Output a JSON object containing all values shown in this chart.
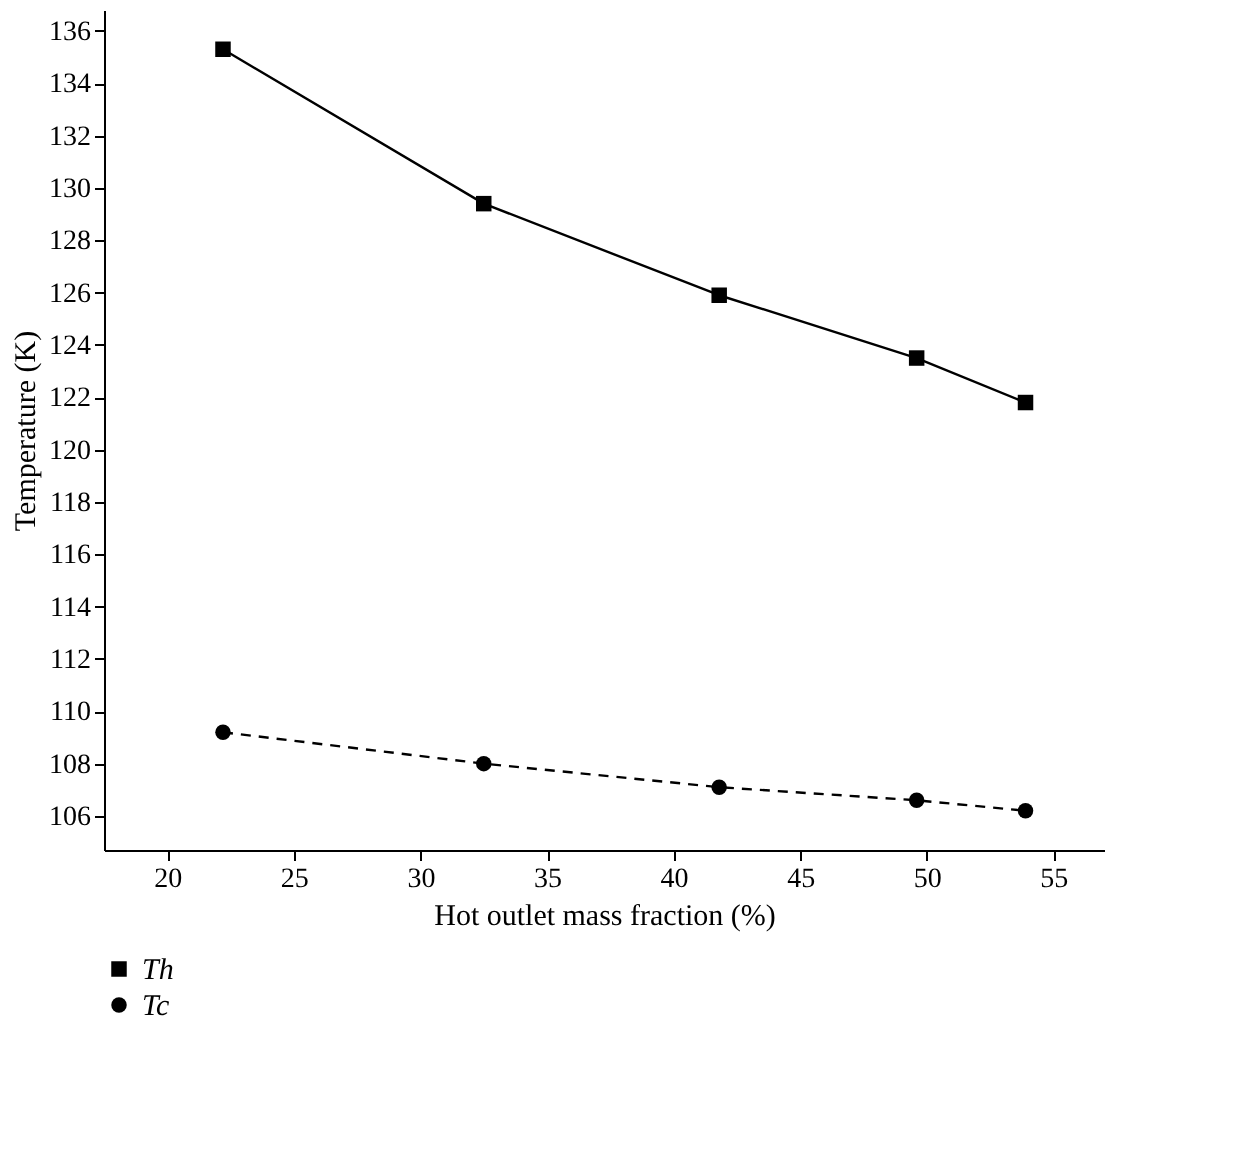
{
  "chart_data": {
    "type": "line",
    "xlabel": "Hot outlet mass fraction (%)",
    "ylabel": "Temperature (K)",
    "x": [
      22.2,
      32.5,
      41.8,
      49.6,
      53.9
    ],
    "series": [
      {
        "name": "Th",
        "color": "#000000",
        "marker": "square",
        "line_style": "solid",
        "values": [
          135.3,
          129.4,
          125.9,
          123.5,
          121.8
        ]
      },
      {
        "name": "Tc",
        "color": "#000000",
        "marker": "circle",
        "line_style": "dashed",
        "values": [
          109.2,
          108.0,
          107.1,
          106.6,
          106.2
        ]
      }
    ],
    "xlim": [
      17.5,
      57
    ],
    "xticks": [
      20,
      25,
      30,
      35,
      40,
      45,
      50,
      55
    ],
    "ylim": [
      104.7,
      136.8
    ],
    "yticks": [
      106,
      108,
      110,
      112,
      114,
      116,
      118,
      120,
      122,
      124,
      126,
      128,
      130,
      132,
      134,
      136
    ],
    "grid": false,
    "legend": "bottom left"
  }
}
